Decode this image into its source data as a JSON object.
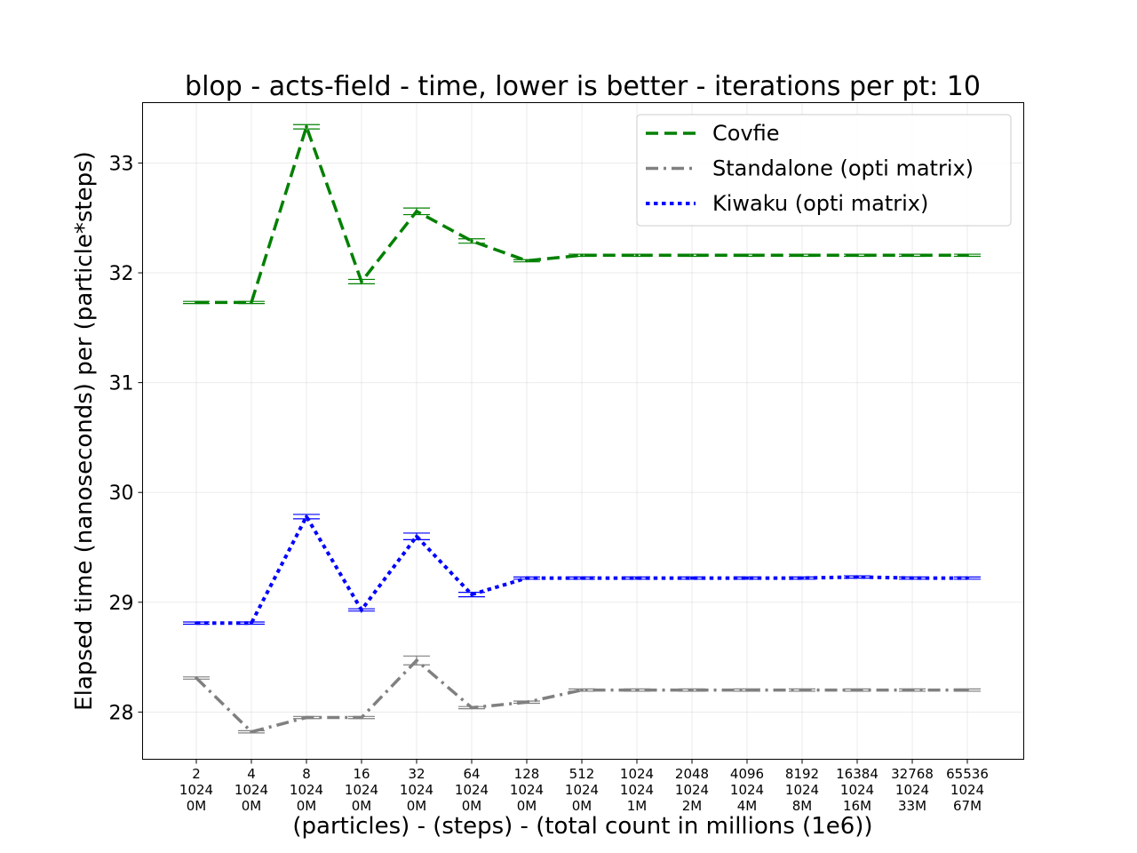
{
  "chart_data": {
    "type": "line",
    "title": "blop - acts-field - time, lower is better - iterations per pt: 10",
    "xlabel": "(particles) - (steps) - (total count in millions (1e6))",
    "ylabel": "Elapsed time (nanoseconds) per (particle*steps)",
    "ylim": [
      27.57,
      33.55
    ],
    "yticks": [
      28,
      29,
      30,
      31,
      32,
      33
    ],
    "ytick_labels": [
      "28",
      "29",
      "30",
      "31",
      "32",
      "33"
    ],
    "grid": true,
    "legend_position": "top-right",
    "categories": [
      [
        "2",
        "1024",
        "0M"
      ],
      [
        "4",
        "1024",
        "0M"
      ],
      [
        "8",
        "1024",
        "0M"
      ],
      [
        "16",
        "1024",
        "0M"
      ],
      [
        "32",
        "1024",
        "0M"
      ],
      [
        "64",
        "1024",
        "0M"
      ],
      [
        "128",
        "1024",
        "0M"
      ],
      [
        "512",
        "1024",
        "0M"
      ],
      [
        "1024",
        "1024",
        "1M"
      ],
      [
        "2048",
        "1024",
        "2M"
      ],
      [
        "4096",
        "1024",
        "4M"
      ],
      [
        "8192",
        "1024",
        "8M"
      ],
      [
        "16384",
        "1024",
        "16M"
      ],
      [
        "32768",
        "1024",
        "33M"
      ],
      [
        "65536",
        "1024",
        "67M"
      ]
    ],
    "series": [
      {
        "name": "Covfie",
        "color": "#008000",
        "style": "dashed",
        "values": [
          31.73,
          31.73,
          33.33,
          31.92,
          32.56,
          32.29,
          32.11,
          32.16,
          32.16,
          32.16,
          32.16,
          32.16,
          32.16,
          32.16,
          32.16
        ],
        "errors": [
          0.01,
          0.01,
          0.02,
          0.02,
          0.03,
          0.02,
          0.01,
          0.01,
          0.01,
          0.01,
          0.01,
          0.01,
          0.01,
          0.01,
          0.01
        ]
      },
      {
        "name": "Standalone (opti matrix)",
        "color": "#808080",
        "style": "dashdot",
        "values": [
          28.31,
          27.82,
          27.95,
          27.95,
          28.47,
          28.04,
          28.09,
          28.2,
          28.2,
          28.2,
          28.2,
          28.2,
          28.2,
          28.2,
          28.2
        ],
        "errors": [
          0.01,
          0.01,
          0.01,
          0.01,
          0.04,
          0.01,
          0.01,
          0.01,
          0.01,
          0.01,
          0.01,
          0.01,
          0.01,
          0.01,
          0.01
        ]
      },
      {
        "name": "Kiwaku (opti matrix)",
        "color": "#0000ff",
        "style": "dotted",
        "values": [
          28.81,
          28.81,
          29.78,
          28.93,
          29.6,
          29.07,
          29.22,
          29.22,
          29.22,
          29.22,
          29.22,
          29.22,
          29.23,
          29.22,
          29.22
        ],
        "errors": [
          0.01,
          0.01,
          0.02,
          0.01,
          0.03,
          0.02,
          0.01,
          0.01,
          0.01,
          0.01,
          0.01,
          0.01,
          0.01,
          0.01,
          0.01
        ]
      }
    ]
  }
}
